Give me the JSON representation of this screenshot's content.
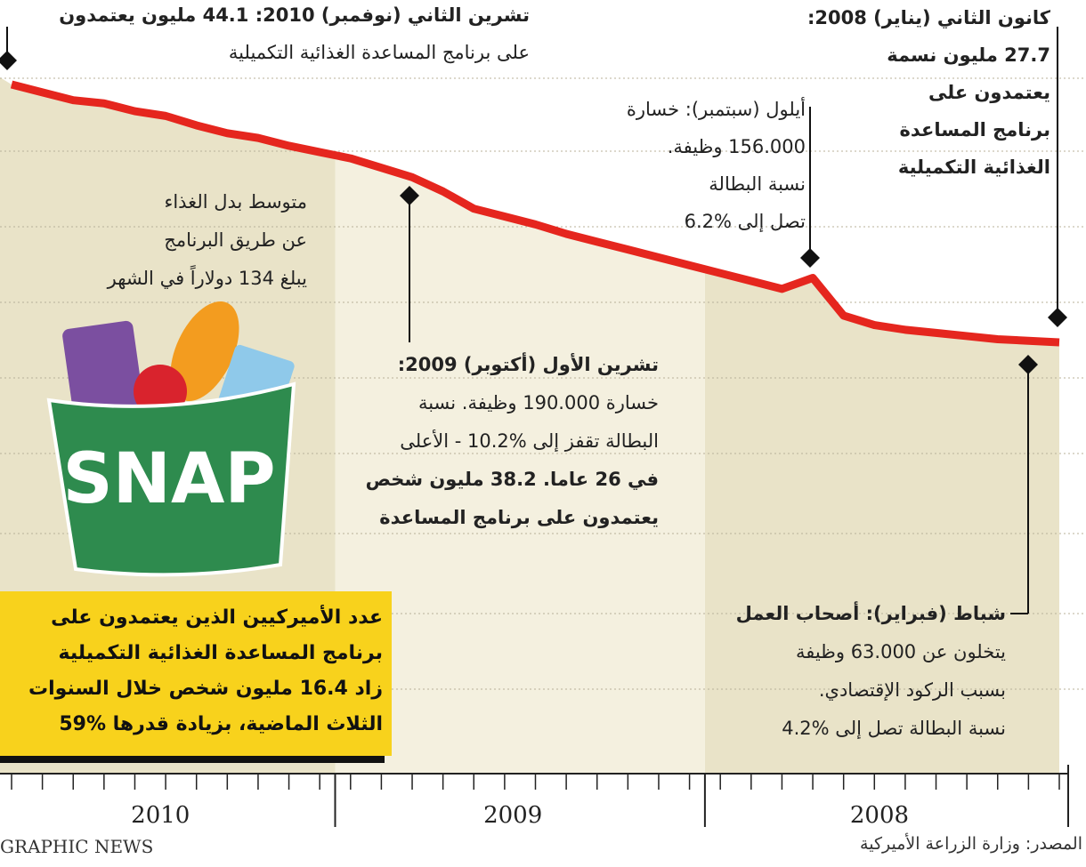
{
  "chart_data": {
    "type": "line",
    "color": "#e5261e",
    "values": [
      27.7,
      27.8,
      27.9,
      28.1,
      28.3,
      28.5,
      28.8,
      29.4,
      31.8,
      31.1,
      31.6,
      32.1,
      32.6,
      33.1,
      33.6,
      34.1,
      34.6,
      35.2,
      35.7,
      36.2,
      37.3,
      38.2,
      38.8,
      39.4,
      39.8,
      40.2,
      40.7,
      41.0,
      41.5,
      42.1,
      42.4,
      42.9,
      43.1,
      43.6,
      44.1
    ],
    "year_labels": [
      "2008",
      "2009",
      "2010"
    ],
    "annotations": {
      "nov_2010": [
        "تشرين الثاني (نوفمبر) 2010: 44.1 مليون يعتمدون",
        "على برنامج المساعدة الغذائية التكميلية"
      ],
      "jan_2008": [
        "كانون الثاني (يناير) 2008:",
        "27.7 مليون نسمة",
        "يعتمدون على",
        "برنامج المساعدة",
        "الغذائية التكميلية"
      ],
      "sep_2008": [
        "أيلول (سبتمبر): خسارة",
        "156.000 وظيفة.",
        "نسبة البطالة",
        "تصل إلى %6.2"
      ],
      "oct_2009": [
        "تشرين الأول (أكتوبر) 2009:",
        "خسارة 190.000 وظيفة. نسبة",
        "البطالة تقفز إلى %10.2 - الأعلى",
        "في 26 عاما. 38.2 مليون شخص",
        "يعتمدون على برنامج المساعدة"
      ],
      "feb_2008": [
        "شباط (فبراير): أصحاب العمل",
        "يتخلون عن 63.000 وظيفة",
        "بسبب الركود الإقتصادي.",
        "نسبة البطالة تصل إلى %4.2"
      ],
      "allowance": [
        "متوسط بدل الغذاء",
        "عن طريق البرنامج",
        "يبلغ 134 دولاراً في الشهر"
      ]
    },
    "summary": [
      "عدد الأميركيين الذين يعتمدون على",
      "برنامج المساعدة الغذائية التكميلية",
      "زاد 16.4 مليون شخص خلال السنوات",
      "الثلاث الماضية، بزيادة قدرها %59"
    ],
    "logo_text": "SNAP",
    "brand": "GRAPHIC NEWS",
    "source": "المصدر: وزارة الزراعة الأميركية"
  }
}
